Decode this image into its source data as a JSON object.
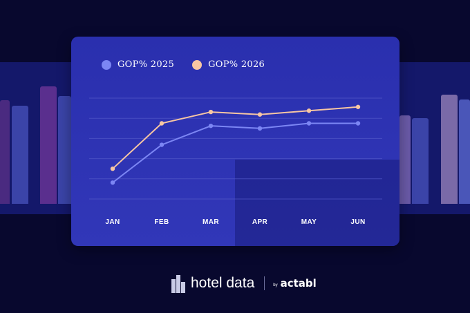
{
  "chart_data": {
    "type": "line",
    "categories": [
      "JAN",
      "FEB",
      "MAR",
      "APR",
      "MAY",
      "JUN"
    ],
    "series": [
      {
        "name": "GOP% 2025",
        "color": "#7c86f4",
        "values": [
          33,
          63,
          78,
          76,
          80,
          80
        ]
      },
      {
        "name": "GOP% 2026",
        "color": "#f7c6a3",
        "values": [
          44,
          80,
          89,
          87,
          90,
          93
        ]
      }
    ],
    "ylim": [
      20,
      100
    ],
    "grid": true,
    "legend_position": "top-left",
    "title": "",
    "xlabel": "",
    "ylabel": ""
  },
  "brand": {
    "name": "hotel data",
    "by": "by",
    "partner": "actabl",
    "logo_icon": "building-icon"
  },
  "colors": {
    "background": "#08082e",
    "card": "#2a2fae",
    "grid": "#5359c9"
  }
}
